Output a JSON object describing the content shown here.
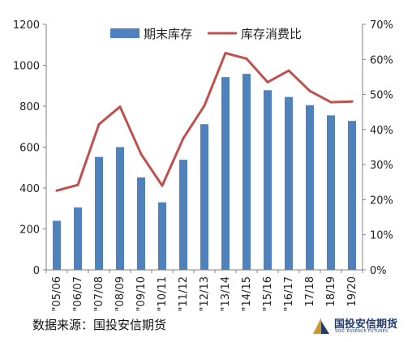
{
  "chart_data": {
    "type": "bar",
    "categories": [
      "\"05/06",
      "\"06/07",
      "\"07/08",
      "\"08/09",
      "\"09/10",
      "\"10/11",
      "\"11/12",
      "\"12/13",
      "\"13/14",
      "\"14/15",
      "\"15/16",
      "\"16/17",
      "17/18",
      "18/19",
      "19/20"
    ],
    "series": [
      {
        "name": "期末库存",
        "type": "bar",
        "axis": "left",
        "values": [
          240,
          305,
          552,
          600,
          452,
          330,
          538,
          712,
          942,
          958,
          878,
          845,
          805,
          755,
          728
        ]
      },
      {
        "name": "库存消费比",
        "type": "line",
        "axis": "right",
        "unit": "%",
        "values": [
          22.6,
          24.2,
          41.5,
          46.5,
          33.0,
          24.0,
          37.5,
          46.8,
          61.8,
          60.2,
          53.5,
          56.8,
          51.0,
          47.8,
          48.0
        ]
      }
    ],
    "ylim_left": [
      0,
      1200
    ],
    "ylim_right": [
      0,
      70
    ],
    "yticks_left": [
      "0",
      "200",
      "400",
      "600",
      "800",
      "1000",
      "1200"
    ],
    "yticks_right": [
      "0%",
      "10%",
      "20%",
      "30%",
      "40%",
      "50%",
      "60%",
      "70%"
    ],
    "legend_position": "top-center",
    "grid": false,
    "colors": {
      "bar": "#4f81bd",
      "line": "#c0504d"
    }
  },
  "footer": {
    "source": "数据来源：国投安信期货",
    "logo_cn": "国投安信期货",
    "logo_en": "SDIC ESSENCE FUTURES"
  }
}
